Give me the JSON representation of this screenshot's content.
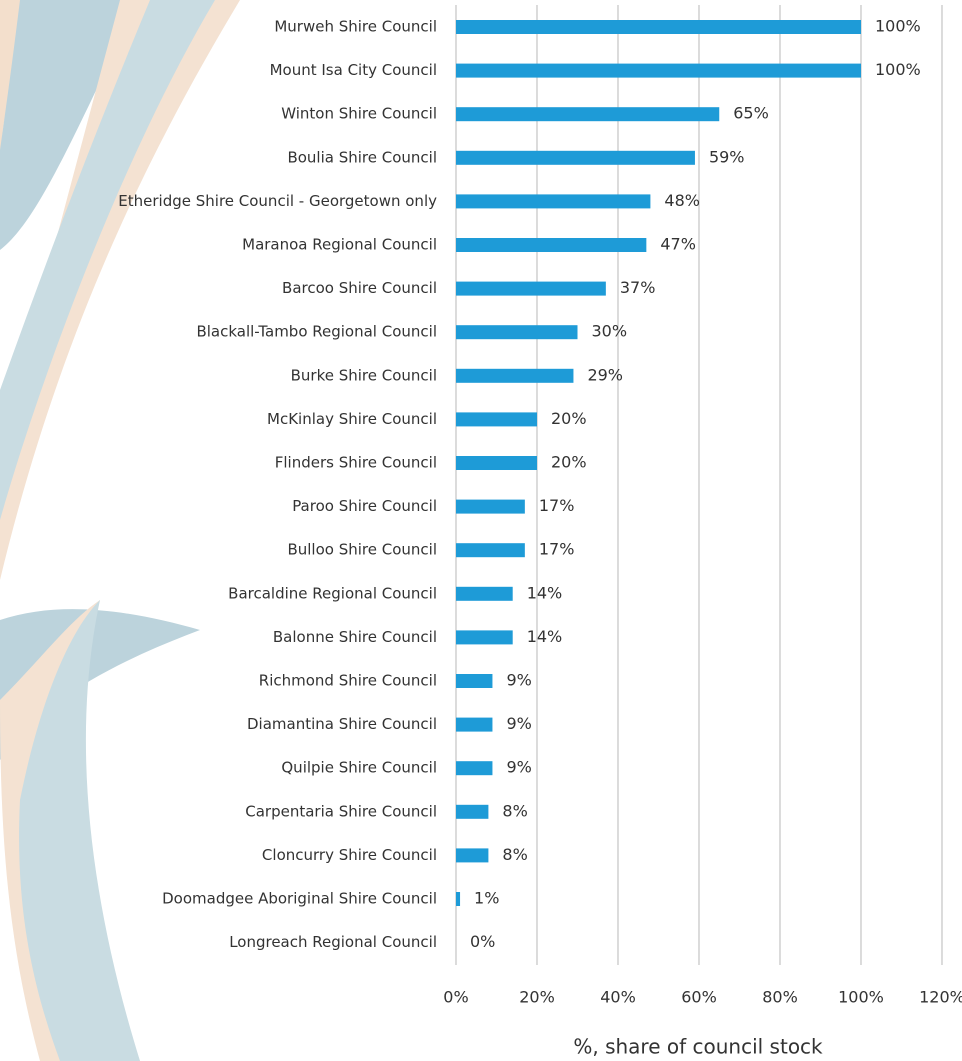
{
  "chart_data": {
    "type": "bar",
    "orientation": "horizontal",
    "x_label": "%, share of council stock",
    "categories": [
      "Murweh Shire Council",
      "Mount Isa City Council",
      "Winton Shire Council",
      "Boulia Shire Council",
      "Etheridge Shire Council - Georgetown only",
      "Maranoa Regional Council",
      "Barcoo Shire Council",
      "Blackall-Tambo Regional Council",
      "Burke Shire Council",
      "McKinlay Shire Council",
      "Flinders Shire Council",
      "Paroo Shire Council",
      "Bulloo Shire Council",
      "Barcaldine Regional Council",
      "Balonne Shire Council",
      "Richmond Shire Council",
      "Diamantina Shire Council",
      "Quilpie Shire Council",
      "Carpentaria Shire Council",
      "Cloncurry Shire Council",
      "Doomadgee Aboriginal Shire Council",
      "Longreach Regional Council"
    ],
    "values": [
      100,
      100,
      65,
      59,
      48,
      47,
      37,
      30,
      29,
      20,
      20,
      17,
      17,
      14,
      14,
      9,
      9,
      9,
      8,
      8,
      1,
      0
    ],
    "value_labels": [
      "100%",
      "100%",
      "65%",
      "59%",
      "48%",
      "47%",
      "37%",
      "30%",
      "29%",
      "20%",
      "20%",
      "17%",
      "17%",
      "14%",
      "14%",
      "9%",
      "9%",
      "9%",
      "8%",
      "8%",
      "1%",
      "0%"
    ],
    "color": "#1e9bd7",
    "xlim": [
      0,
      120
    ],
    "xticks": [
      {
        "value": 0,
        "label": "0%"
      },
      {
        "value": 20,
        "label": "20%"
      },
      {
        "value": 40,
        "label": "40%"
      },
      {
        "value": 60,
        "label": "60%"
      },
      {
        "value": 80,
        "label": "80%"
      },
      {
        "value": 100,
        "label": "100%"
      },
      {
        "value": 120,
        "label": "120%"
      }
    ],
    "grid": true
  }
}
